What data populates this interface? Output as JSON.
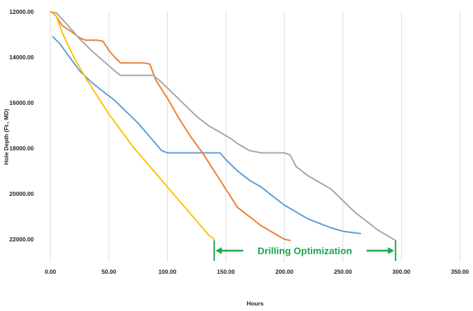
{
  "colors": {
    "annotation": "#1aa64a",
    "grid": "#dcdcdc",
    "background": "#ffffff"
  },
  "chart_data": {
    "type": "line",
    "title": "",
    "xlabel": "Hours",
    "ylabel": "Hole Depth (Ft., MD)",
    "xlim": [
      0,
      350
    ],
    "ylim": [
      12000,
      23000
    ],
    "y_inverted": true,
    "grid": "vertical",
    "x_ticks": [
      0,
      50,
      100,
      150,
      200,
      250,
      300,
      350
    ],
    "x_tick_labels": [
      "0.00",
      "50.00",
      "100.00",
      "150.00",
      "200.00",
      "250.00",
      "300.00",
      "350.00"
    ],
    "y_ticks": [
      12000,
      14000,
      16000,
      18000,
      20000,
      22000
    ],
    "y_tick_labels": [
      "12000.00",
      "14000.00",
      "16000.00",
      "18000.00",
      "20000.00",
      "22000.00"
    ],
    "series": [
      {
        "color": "#5b9bd5",
        "x": [
          2,
          8,
          15,
          25,
          35,
          45,
          55,
          65,
          75,
          85,
          95,
          100,
          120,
          140,
          145,
          150,
          160,
          170,
          180,
          190,
          200,
          210,
          220,
          230,
          240,
          250,
          265
        ],
        "y": [
          13100,
          13400,
          13900,
          14600,
          15100,
          15500,
          15900,
          16400,
          16900,
          17500,
          18100,
          18200,
          18200,
          18200,
          18200,
          18500,
          19000,
          19400,
          19700,
          20100,
          20500,
          20800,
          21100,
          21300,
          21500,
          21650,
          21750
        ]
      },
      {
        "color": "#ed7d31",
        "x": [
          0,
          2,
          5,
          10,
          20,
          25,
          30,
          35,
          40,
          45,
          50,
          55,
          60,
          65,
          70,
          75,
          80,
          85,
          90,
          100,
          110,
          120,
          130,
          140,
          150,
          160,
          170,
          180,
          190,
          200,
          205
        ],
        "y": [
          12000,
          12050,
          12200,
          12600,
          12950,
          13150,
          13250,
          13250,
          13250,
          13300,
          13700,
          14000,
          14250,
          14250,
          14250,
          14250,
          14250,
          14300,
          15000,
          15800,
          16700,
          17500,
          18200,
          19000,
          19800,
          20600,
          21000,
          21400,
          21700,
          22000,
          22050
        ]
      },
      {
        "color": "#a5a5a5",
        "x": [
          0,
          5,
          15,
          25,
          35,
          45,
          55,
          60,
          70,
          80,
          88,
          95,
          105,
          115,
          125,
          135,
          145,
          155,
          160,
          170,
          180,
          190,
          200,
          205,
          210,
          220,
          230,
          240,
          250,
          260,
          270,
          280,
          290,
          295
        ],
        "y": [
          12000,
          12050,
          12600,
          13200,
          13700,
          14150,
          14600,
          14800,
          14800,
          14800,
          14800,
          15100,
          15600,
          16100,
          16600,
          17000,
          17300,
          17600,
          17800,
          18100,
          18200,
          18200,
          18200,
          18300,
          18800,
          19200,
          19500,
          19800,
          20300,
          20800,
          21200,
          21600,
          21900,
          22050
        ]
      },
      {
        "color": "#ffc000",
        "x": [
          0,
          2,
          5,
          10,
          20,
          30,
          40,
          50,
          60,
          70,
          80,
          90,
          100,
          110,
          120,
          130,
          135,
          140
        ],
        "y": [
          12000,
          12000,
          12200,
          12900,
          14000,
          14900,
          15700,
          16500,
          17200,
          17900,
          18500,
          19100,
          19700,
          20300,
          20900,
          21500,
          21800,
          22000
        ]
      }
    ],
    "annotation": {
      "text": "Drilling  Optimization",
      "x_start": 140,
      "x_end": 295,
      "y": 22500
    }
  }
}
